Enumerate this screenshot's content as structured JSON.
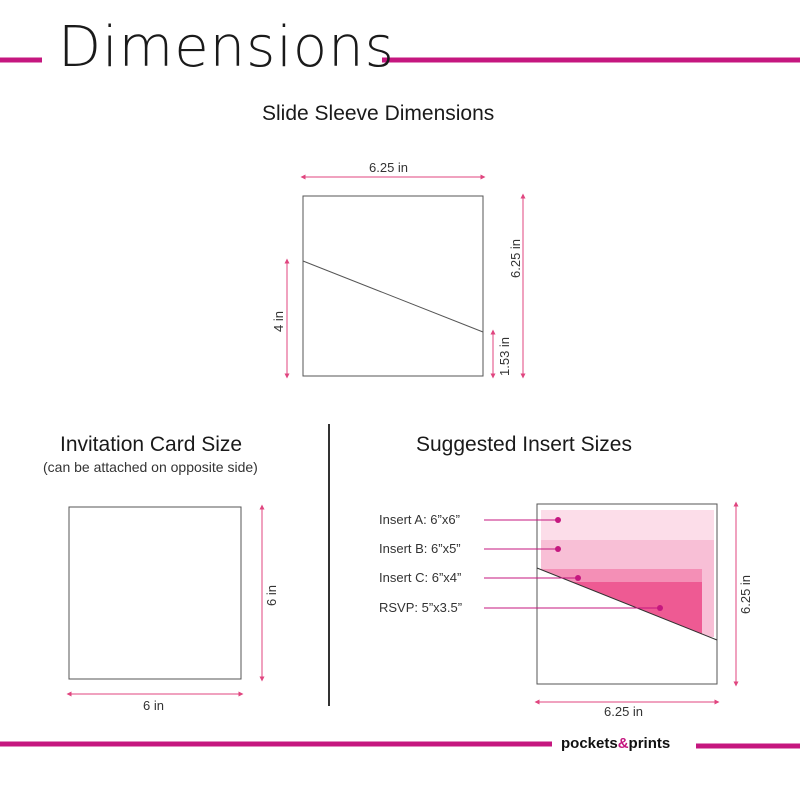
{
  "header": {
    "title": "Dimensions"
  },
  "sleeve": {
    "heading": "Slide Sleeve Dimensions",
    "width_label": "6.25 in",
    "height_label": "6.25 in",
    "left_label": "4 in",
    "right_small_label": "1.53 in"
  },
  "invitation": {
    "heading": "Invitation Card Size",
    "subheading": "(can be attached on opposite side)",
    "width_label": "6 in",
    "height_label": "6 in"
  },
  "inserts": {
    "heading": "Suggested Insert Sizes",
    "items": [
      {
        "label": "Insert A: 6”x6”",
        "color": "#fcdde9"
      },
      {
        "label": "Insert B: 6”x5”",
        "color": "#f8bfd6"
      },
      {
        "label": "Insert C: 6”x4”",
        "color": "#f48fb6"
      },
      {
        "label": "RSVP: 5”x3.5”",
        "color": "#ee5a93"
      }
    ],
    "width_label": "6.25 in",
    "height_label": "6.25 in"
  },
  "footer": {
    "brand_left": "pockets",
    "brand_amp": "&",
    "brand_right": "prints"
  },
  "colors": {
    "accent": "#c5177f",
    "dim": "#e0457f",
    "outline": "#555555"
  }
}
